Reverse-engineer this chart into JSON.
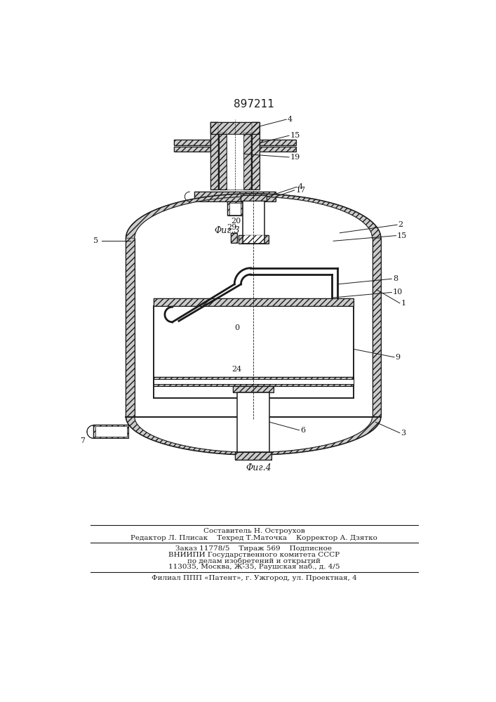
{
  "patent_number": "897211",
  "fig3_label": "Φиг.3",
  "fig4_label": "Φиг.4",
  "background_color": "#ffffff",
  "line_color": "#1a1a1a",
  "footer_lines": [
    "Составитель Н. Остроухов",
    "Редактор Л. Плисак    Техред Т.Маточка    Корректор А. Дзятко",
    "Заказ 11778/5    Тираж 569    Подписное",
    "ВНИИПИ Государственного комитета СССР",
    "по делам изобретений и открытий",
    "113035, Москва, Ж-35, Раушская наб., д. 4/5",
    "Филиал ППП «Патент», г. Ужгород, ул. Проектная, 4"
  ]
}
